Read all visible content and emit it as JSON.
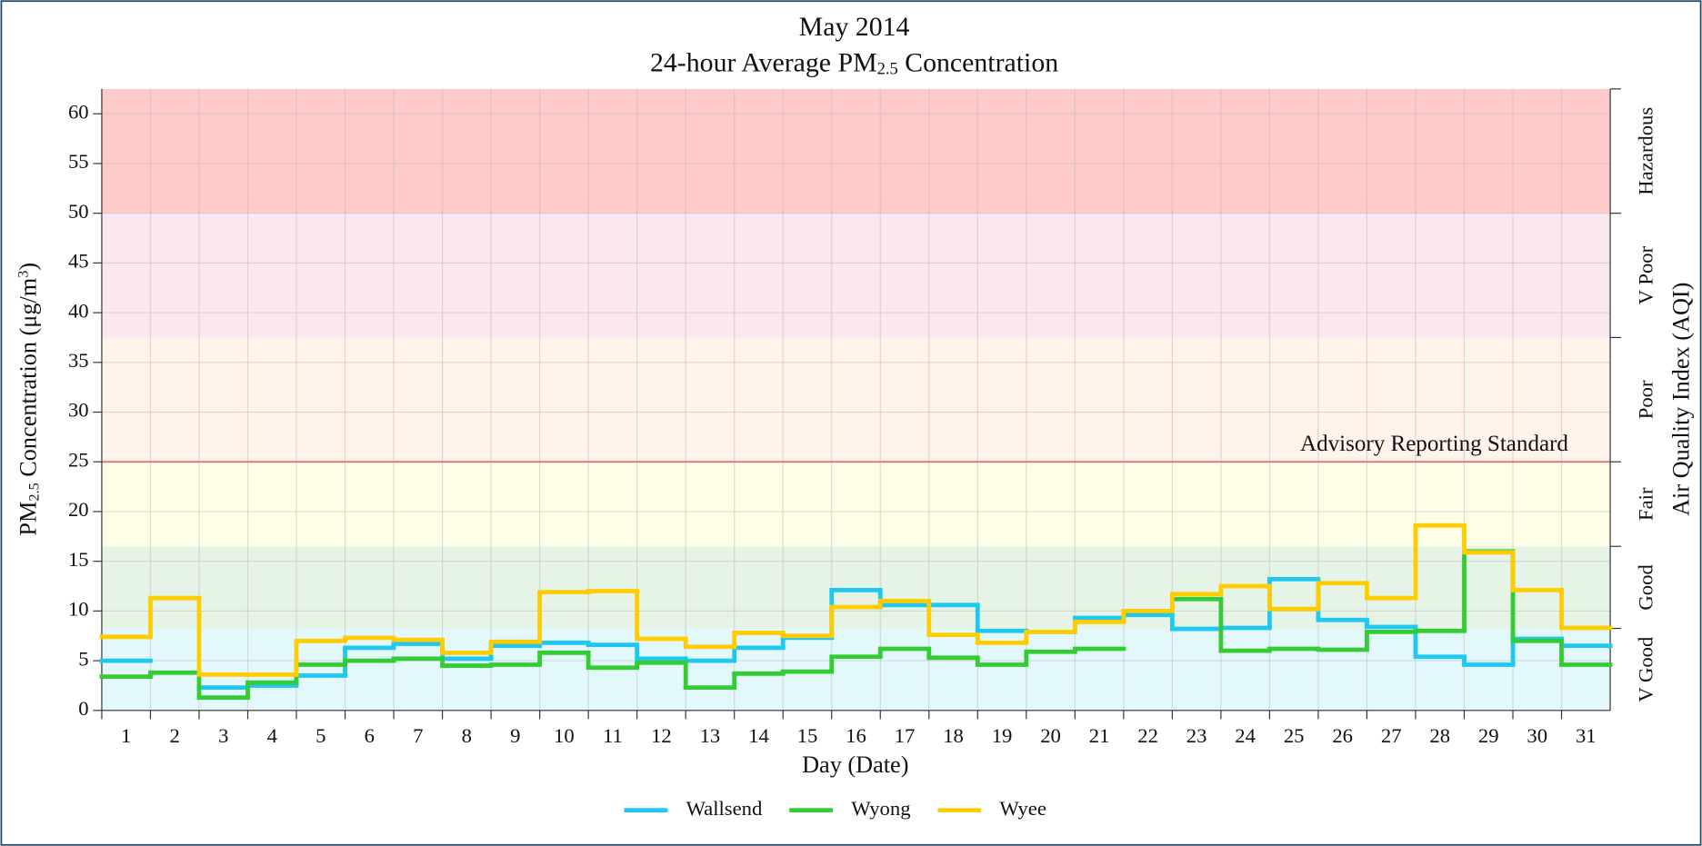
{
  "chart_data": {
    "type": "step",
    "title": "May 2014",
    "subtitle": [
      {
        "text": "24-hour Average PM",
        "style": "normal"
      },
      {
        "text": "2.5",
        "style": "sub"
      },
      {
        "text": " Concentration",
        "style": "normal"
      }
    ],
    "y_label": [
      {
        "text": "PM",
        "style": "normal"
      },
      {
        "text": "2.5",
        "style": "sub"
      },
      {
        "text": " Concentration (μg/m",
        "style": "normal"
      },
      {
        "text": "3",
        "style": "sup"
      },
      {
        "text": ")",
        "style": "normal"
      }
    ],
    "x_label": "Day (Date)",
    "y2_label": "Air Quality Index (AQI)",
    "categories": [
      1,
      2,
      3,
      4,
      5,
      6,
      7,
      8,
      9,
      10,
      11,
      12,
      13,
      14,
      15,
      16,
      17,
      18,
      19,
      20,
      21,
      22,
      23,
      24,
      25,
      26,
      27,
      28,
      29,
      30,
      31
    ],
    "xlim": [
      0.5,
      31.5
    ],
    "ylim": [
      0,
      62.5
    ],
    "yticks": [
      0,
      5,
      10,
      15,
      20,
      25,
      30,
      35,
      40,
      45,
      50,
      55,
      60
    ],
    "grid": true,
    "aqi_bands": [
      {
        "name": "V Good",
        "from": 0,
        "to": 8.25,
        "color": "#e3f8fb"
      },
      {
        "name": "Good",
        "from": 8.25,
        "to": 16.5,
        "color": "#e5f4e6"
      },
      {
        "name": "Fair",
        "from": 16.5,
        "to": 25,
        "color": "#fefde5"
      },
      {
        "name": "Poor",
        "from": 25,
        "to": 37.5,
        "color": "#fff3ea"
      },
      {
        "name": "V Poor",
        "from": 37.5,
        "to": 50,
        "color": "#fbe7f0"
      },
      {
        "name": "Hazardous",
        "from": 50,
        "to": 62.5,
        "color": "#ffcaca"
      }
    ],
    "reference_line": {
      "value": 25,
      "label": "Advisory Reporting Standard",
      "color": "#e06b78"
    },
    "series": [
      {
        "name": "Wallsend",
        "color": "#1ec8f0",
        "values": [
          5.0,
          null,
          2.3,
          2.5,
          3.5,
          6.3,
          6.7,
          5.2,
          6.5,
          6.8,
          6.6,
          5.2,
          5.0,
          6.3,
          7.3,
          12.1,
          10.6,
          10.6,
          8.0,
          7.9,
          9.3,
          9.6,
          8.2,
          8.3,
          13.2,
          9.1,
          8.4,
          5.4,
          4.6,
          7.2,
          6.5
        ]
      },
      {
        "name": "Wyong",
        "color": "#33cc33",
        "values": [
          3.4,
          3.8,
          1.3,
          2.8,
          4.6,
          5.0,
          5.2,
          4.5,
          4.6,
          5.8,
          4.3,
          4.8,
          2.3,
          3.7,
          3.9,
          5.4,
          6.2,
          5.3,
          4.6,
          5.9,
          6.2,
          null,
          11.2,
          6.0,
          6.2,
          6.1,
          7.9,
          8.0,
          16.0,
          7.0,
          4.6
        ]
      },
      {
        "name": "Wyee",
        "color": "#ffcc00",
        "values": [
          7.4,
          11.3,
          3.6,
          3.6,
          7.0,
          7.3,
          7.1,
          5.8,
          6.9,
          11.9,
          12.0,
          7.2,
          6.4,
          7.8,
          7.5,
          10.4,
          11.0,
          7.6,
          6.8,
          7.9,
          8.9,
          10.0,
          11.7,
          12.5,
          10.2,
          12.8,
          11.3,
          18.6,
          15.9,
          12.1,
          8.3
        ]
      }
    ]
  }
}
